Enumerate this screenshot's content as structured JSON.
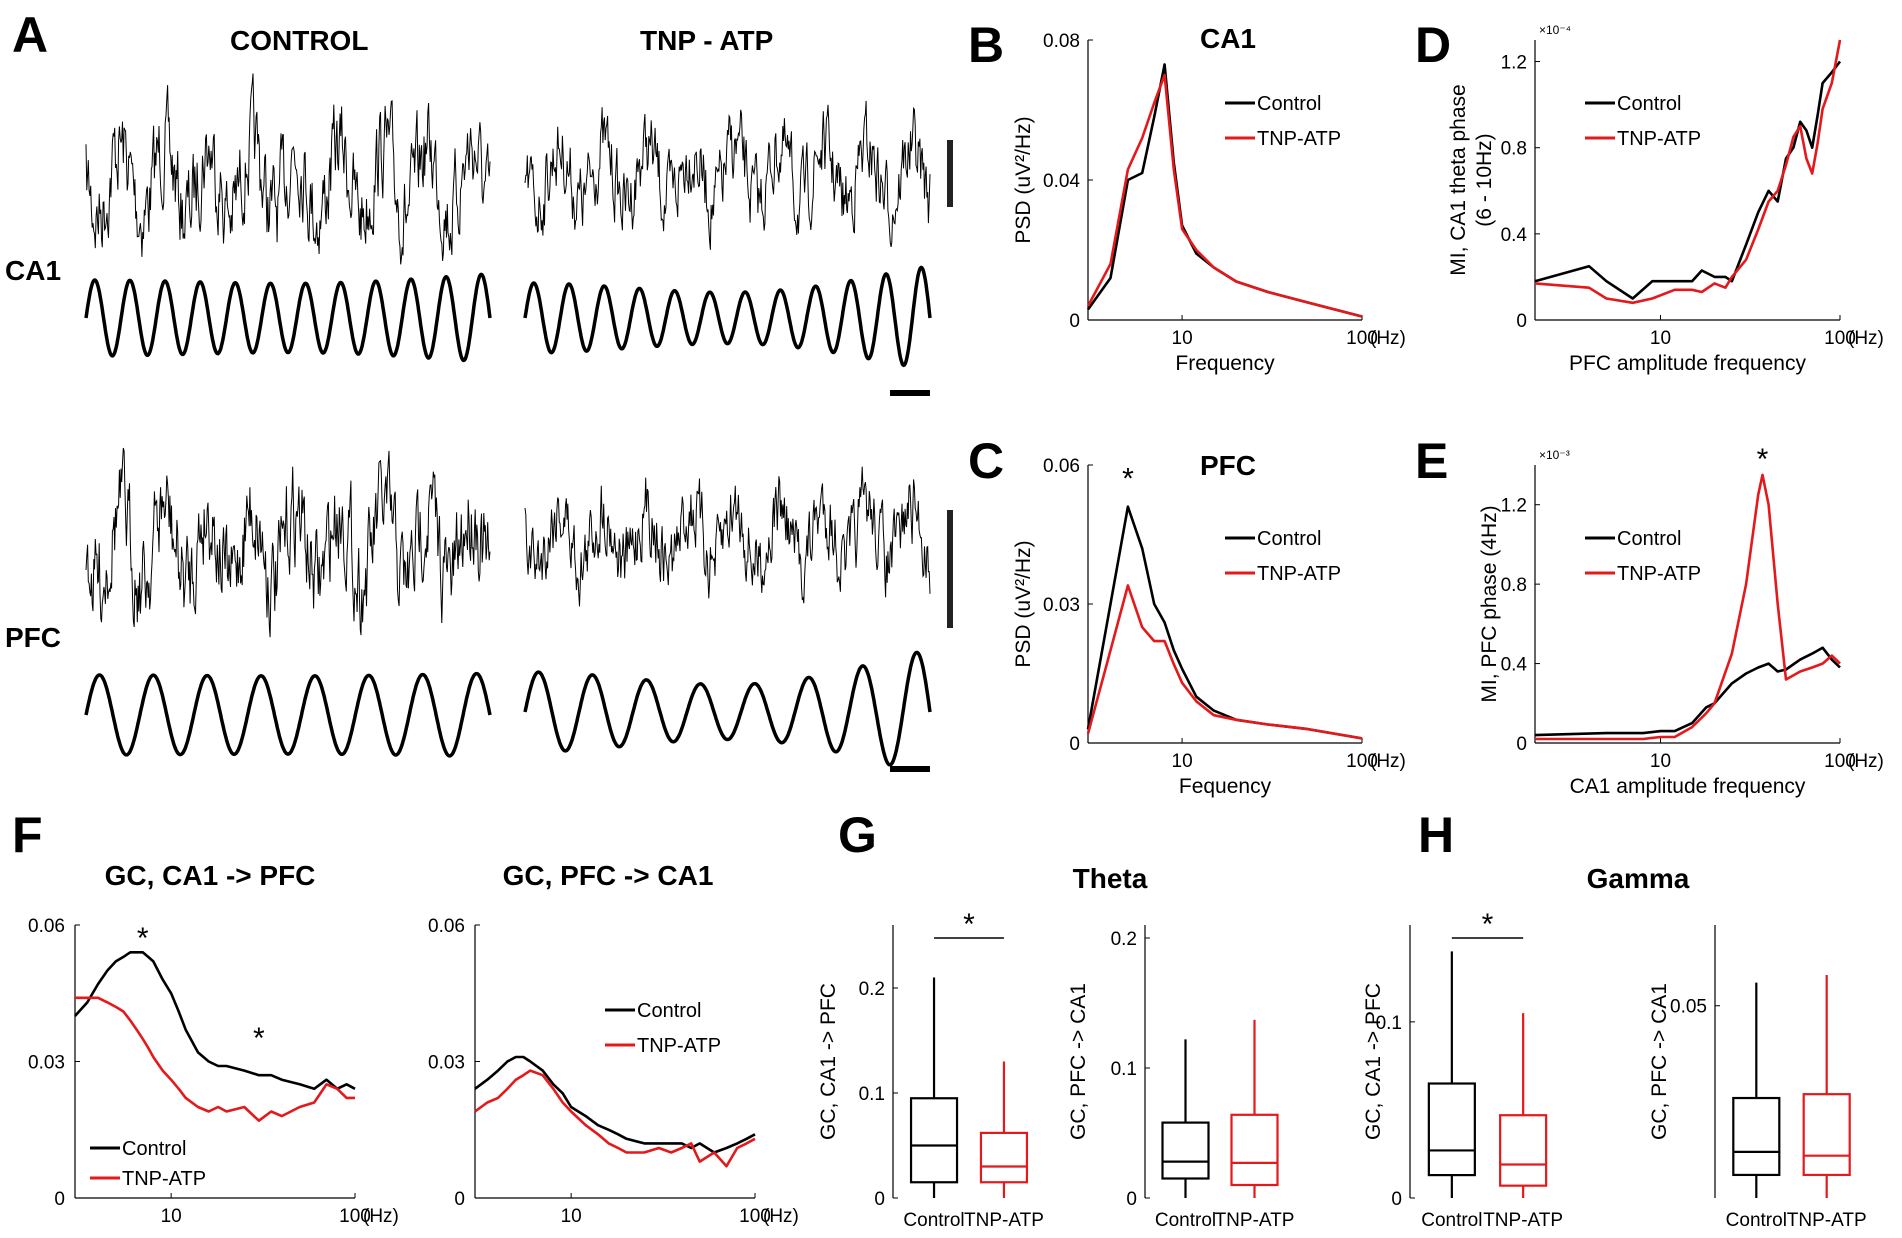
{
  "colors": {
    "control": "#000000",
    "tnp": "#e3191c"
  },
  "panels": {
    "A": "A",
    "B": "B",
    "C": "C",
    "D": "D",
    "E": "E",
    "F": "F",
    "G": "G",
    "H": "H"
  },
  "a": {
    "control": "CONTROL",
    "tnp": "TNP - ATP",
    "ca1": "CA1",
    "pfc": "PFC"
  },
  "chart_data": [
    {
      "id": "B",
      "type": "line",
      "title": "CA1",
      "xlabel": "Frequency",
      "ylabel": "PSD (uV²/Hz)",
      "xscale": "log",
      "xlim": [
        3,
        100
      ],
      "ylim": [
        0,
        0.08
      ],
      "yticks": [
        "0",
        "0.04",
        "0.08"
      ],
      "xticks": [
        "10",
        "100"
      ],
      "xunit": "(Hz)",
      "legend": [
        "Control",
        "TNP-ATP"
      ],
      "annotations": [],
      "series": [
        {
          "name": "Control",
          "color": "#000000",
          "x": [
            3,
            4,
            5,
            6,
            7,
            8,
            9,
            10,
            12,
            15,
            20,
            30,
            50,
            100
          ],
          "y": [
            0.003,
            0.012,
            0.04,
            0.042,
            0.058,
            0.073,
            0.045,
            0.027,
            0.019,
            0.015,
            0.011,
            0.008,
            0.005,
            0.001
          ]
        },
        {
          "name": "TNP-ATP",
          "color": "#e3191c",
          "x": [
            3,
            4,
            5,
            6,
            7,
            8,
            9,
            10,
            12,
            15,
            20,
            30,
            50,
            100
          ],
          "y": [
            0.004,
            0.016,
            0.043,
            0.052,
            0.062,
            0.07,
            0.043,
            0.026,
            0.02,
            0.015,
            0.011,
            0.008,
            0.005,
            0.001
          ]
        }
      ]
    },
    {
      "id": "C",
      "type": "line",
      "title": "PFC",
      "xlabel": "Fequency",
      "ylabel": "PSD (uV²/Hz)",
      "xscale": "log",
      "xlim": [
        3,
        100
      ],
      "ylim": [
        0,
        0.06
      ],
      "yticks": [
        "0",
        "0.03",
        "0.06"
      ],
      "xticks": [
        "10",
        "100"
      ],
      "xunit": "(Hz)",
      "legend": [
        "Control",
        "TNP-ATP"
      ],
      "annotations": [
        {
          "text": "*",
          "x": 5,
          "y": 0.058
        }
      ],
      "series": [
        {
          "name": "Control",
          "color": "#000000",
          "x": [
            3,
            4,
            5,
            6,
            7,
            8,
            9,
            10,
            12,
            15,
            20,
            30,
            50,
            100
          ],
          "y": [
            0.003,
            0.03,
            0.051,
            0.042,
            0.03,
            0.026,
            0.02,
            0.016,
            0.01,
            0.007,
            0.005,
            0.004,
            0.003,
            0.001
          ]
        },
        {
          "name": "TNP-ATP",
          "color": "#e3191c",
          "x": [
            3,
            4,
            5,
            6,
            7,
            8,
            9,
            10,
            12,
            15,
            20,
            30,
            50,
            100
          ],
          "y": [
            0.002,
            0.02,
            0.034,
            0.025,
            0.022,
            0.022,
            0.017,
            0.013,
            0.009,
            0.006,
            0.005,
            0.004,
            0.003,
            0.001
          ]
        }
      ]
    },
    {
      "id": "D",
      "type": "line",
      "title": "",
      "xlabel": "PFC amplitude frequency",
      "ylabel": "MI, CA1 theta phase|(6 - 10Hz)",
      "multiplier": "×10⁻⁴",
      "xscale": "log",
      "xlim": [
        2,
        100
      ],
      "ylim": [
        0,
        1.3
      ],
      "yticks": [
        "0",
        "0.4",
        "0.8",
        "1.2"
      ],
      "xticks": [
        "10",
        "100"
      ],
      "xunit": "(Hz)",
      "legend": [
        "Control",
        "TNP-ATP"
      ],
      "annotations": [],
      "series": [
        {
          "name": "Control",
          "color": "#000000",
          "x": [
            2,
            4,
            5,
            7,
            9,
            12,
            15,
            17,
            20,
            23,
            25,
            30,
            35,
            40,
            45,
            50,
            55,
            60,
            65,
            70,
            75,
            80,
            90,
            100
          ],
          "y": [
            0.18,
            0.25,
            0.18,
            0.1,
            0.18,
            0.18,
            0.18,
            0.23,
            0.2,
            0.2,
            0.18,
            0.35,
            0.5,
            0.6,
            0.55,
            0.75,
            0.8,
            0.92,
            0.88,
            0.8,
            0.95,
            1.1,
            1.15,
            1.2
          ]
        },
        {
          "name": "TNP-ATP",
          "color": "#e3191c",
          "x": [
            2,
            4,
            5,
            7,
            9,
            12,
            15,
            17,
            20,
            23,
            25,
            30,
            35,
            40,
            45,
            50,
            55,
            60,
            65,
            70,
            75,
            80,
            90,
            100
          ],
          "y": [
            0.17,
            0.15,
            0.1,
            0.08,
            0.1,
            0.14,
            0.14,
            0.13,
            0.17,
            0.15,
            0.2,
            0.28,
            0.42,
            0.55,
            0.6,
            0.72,
            0.85,
            0.9,
            0.75,
            0.68,
            0.82,
            0.98,
            1.1,
            1.3
          ]
        }
      ]
    },
    {
      "id": "E",
      "type": "line",
      "title": "",
      "xlabel": "CA1 amplitude frequency",
      "ylabel": "MI, PFC phase (4Hz)",
      "multiplier": "×10⁻³",
      "xscale": "log",
      "xlim": [
        2,
        100
      ],
      "ylim": [
        0,
        1.4
      ],
      "yticks": [
        "0",
        "0.4",
        "0.8",
        "1.2"
      ],
      "xticks": [
        "10",
        "100"
      ],
      "xunit": "(Hz)",
      "legend": [
        "Control",
        "TNP-ATP"
      ],
      "annotations": [
        {
          "text": "*",
          "x": 37,
          "y": 1.45
        }
      ],
      "series": [
        {
          "name": "Control",
          "color": "#000000",
          "x": [
            2,
            5,
            8,
            10,
            12,
            15,
            18,
            20,
            25,
            30,
            35,
            40,
            45,
            50,
            60,
            70,
            80,
            90,
            100
          ],
          "y": [
            0.04,
            0.05,
            0.05,
            0.06,
            0.06,
            0.1,
            0.18,
            0.2,
            0.3,
            0.35,
            0.38,
            0.4,
            0.36,
            0.37,
            0.42,
            0.45,
            0.48,
            0.42,
            0.38
          ]
        },
        {
          "name": "TNP-ATP",
          "color": "#e3191c",
          "x": [
            2,
            5,
            8,
            10,
            12,
            15,
            18,
            20,
            25,
            30,
            35,
            37,
            40,
            45,
            50,
            60,
            70,
            80,
            90,
            100
          ],
          "y": [
            0.02,
            0.02,
            0.02,
            0.03,
            0.03,
            0.08,
            0.15,
            0.2,
            0.45,
            0.8,
            1.25,
            1.35,
            1.2,
            0.7,
            0.32,
            0.36,
            0.38,
            0.4,
            0.44,
            0.4
          ]
        }
      ]
    },
    {
      "id": "F1",
      "type": "line",
      "title": "GC, CA1 -> PFC",
      "xlabel": "",
      "ylabel": "",
      "xscale": "log",
      "xlim": [
        3,
        100
      ],
      "ylim": [
        0,
        0.06
      ],
      "yticks": [
        "0",
        "0.03",
        "0.06"
      ],
      "xticks": [
        "10",
        "100"
      ],
      "xunit": "(Hz)",
      "legend": [
        "Control",
        "TNP-ATP"
      ],
      "annotations": [
        {
          "text": "*",
          "x": 7,
          "y": 0.058
        },
        {
          "text": "*",
          "x": 30,
          "y": 0.036
        }
      ],
      "series": [
        {
          "name": "Control",
          "color": "#000000",
          "x": [
            3,
            3.5,
            4,
            4.5,
            5,
            5.5,
            6,
            6.5,
            7,
            7.5,
            8,
            9,
            10,
            11,
            12,
            14,
            16,
            18,
            20,
            25,
            30,
            35,
            40,
            50,
            60,
            70,
            80,
            90,
            100
          ],
          "y": [
            0.04,
            0.043,
            0.047,
            0.05,
            0.052,
            0.053,
            0.054,
            0.054,
            0.054,
            0.053,
            0.052,
            0.048,
            0.045,
            0.041,
            0.037,
            0.032,
            0.03,
            0.029,
            0.029,
            0.028,
            0.027,
            0.027,
            0.026,
            0.025,
            0.024,
            0.026,
            0.024,
            0.025,
            0.024
          ]
        },
        {
          "name": "TNP-ATP",
          "color": "#e3191c",
          "x": [
            3,
            3.5,
            4,
            4.5,
            5,
            5.5,
            6,
            6.5,
            7,
            7.5,
            8,
            9,
            10,
            11,
            12,
            14,
            16,
            18,
            20,
            25,
            30,
            35,
            40,
            50,
            60,
            70,
            80,
            90,
            100
          ],
          "y": [
            0.044,
            0.044,
            0.044,
            0.043,
            0.042,
            0.041,
            0.039,
            0.037,
            0.035,
            0.033,
            0.031,
            0.028,
            0.026,
            0.024,
            0.022,
            0.02,
            0.019,
            0.02,
            0.019,
            0.02,
            0.017,
            0.019,
            0.018,
            0.02,
            0.021,
            0.025,
            0.024,
            0.022,
            0.022
          ]
        }
      ]
    },
    {
      "id": "F2",
      "type": "line",
      "title": "GC, PFC -> CA1",
      "xlabel": "",
      "ylabel": "",
      "xscale": "log",
      "xlim": [
        3,
        100
      ],
      "ylim": [
        0,
        0.06
      ],
      "yticks": [
        "0",
        "0.03",
        "0.06"
      ],
      "xticks": [
        "10",
        "100"
      ],
      "xunit": "(Hz)",
      "legend": [
        "Control",
        "TNP-ATP"
      ],
      "annotations": [],
      "series": [
        {
          "name": "Control",
          "color": "#000000",
          "x": [
            3,
            3.5,
            4,
            4.5,
            5,
            5.5,
            6,
            7,
            8,
            9,
            10,
            12,
            14,
            16,
            18,
            20,
            25,
            30,
            35,
            40,
            45,
            50,
            60,
            70,
            80,
            90,
            100
          ],
          "y": [
            0.024,
            0.026,
            0.028,
            0.03,
            0.031,
            0.031,
            0.03,
            0.028,
            0.025,
            0.023,
            0.02,
            0.018,
            0.016,
            0.015,
            0.014,
            0.013,
            0.012,
            0.012,
            0.012,
            0.012,
            0.011,
            0.012,
            0.01,
            0.011,
            0.012,
            0.013,
            0.014
          ]
        },
        {
          "name": "TNP-ATP",
          "color": "#e3191c",
          "x": [
            3,
            3.5,
            4,
            4.5,
            5,
            5.5,
            6,
            7,
            8,
            9,
            10,
            12,
            14,
            16,
            18,
            20,
            25,
            30,
            35,
            40,
            45,
            50,
            60,
            70,
            80,
            90,
            100
          ],
          "y": [
            0.019,
            0.021,
            0.022,
            0.024,
            0.026,
            0.027,
            0.028,
            0.027,
            0.024,
            0.021,
            0.019,
            0.016,
            0.014,
            0.012,
            0.011,
            0.01,
            0.01,
            0.011,
            0.01,
            0.011,
            0.012,
            0.008,
            0.01,
            0.007,
            0.011,
            0.012,
            0.013
          ]
        }
      ]
    },
    {
      "id": "G1",
      "type": "box",
      "title": "Theta",
      "ylabel": "GC, CA1 -> PFC",
      "ylim": [
        0,
        0.26
      ],
      "yticks": [
        "0",
        "0.1",
        "0.2"
      ],
      "categories": [
        "Control",
        "TNP-ATP"
      ],
      "significance": "*",
      "boxes": [
        {
          "name": "Control",
          "color": "#000000",
          "min": 0.0,
          "q1": 0.015,
          "median": 0.05,
          "q3": 0.095,
          "max": 0.21
        },
        {
          "name": "TNP-ATP",
          "color": "#e3191c",
          "min": 0.0,
          "q1": 0.015,
          "median": 0.03,
          "q3": 0.062,
          "max": 0.13
        }
      ]
    },
    {
      "id": "G2",
      "type": "box",
      "ylabel": "GC, PFC -> CA1",
      "ylim": [
        0,
        0.21
      ],
      "yticks": [
        "0",
        "0.1",
        "0.2"
      ],
      "categories": [
        "Control",
        "TNP-ATP"
      ],
      "boxes": [
        {
          "name": "Control",
          "color": "#000000",
          "min": 0.0,
          "q1": 0.015,
          "median": 0.028,
          "q3": 0.058,
          "max": 0.122
        },
        {
          "name": "TNP-ATP",
          "color": "#e3191c",
          "min": 0.0,
          "q1": 0.01,
          "median": 0.027,
          "q3": 0.064,
          "max": 0.137
        }
      ]
    },
    {
      "id": "H1",
      "type": "box",
      "title": "Gamma",
      "ylabel": "GC, CA1 -> PFC",
      "ylim": [
        0,
        0.155
      ],
      "yticks": [
        "0",
        "0.1"
      ],
      "categories": [
        "Control",
        "TNP-ATP"
      ],
      "significance": "*",
      "boxes": [
        {
          "name": "Control",
          "color": "#000000",
          "min": 0.0,
          "q1": 0.013,
          "median": 0.027,
          "q3": 0.065,
          "max": 0.14
        },
        {
          "name": "TNP-ATP",
          "color": "#e3191c",
          "min": 0.0,
          "q1": 0.007,
          "median": 0.019,
          "q3": 0.047,
          "max": 0.105
        }
      ]
    },
    {
      "id": "H2",
      "type": "box",
      "ylabel": "GC, PFC -> CA1",
      "ylim": [
        0,
        0.071
      ],
      "yticks": [
        "0.05"
      ],
      "categories": [
        "Control",
        "TNP-ATP"
      ],
      "boxes": [
        {
          "name": "Control",
          "color": "#000000",
          "min": 0.0,
          "q1": 0.006,
          "median": 0.012,
          "q3": 0.026,
          "max": 0.056
        },
        {
          "name": "TNP-ATP",
          "color": "#e3191c",
          "min": 0.0,
          "q1": 0.006,
          "median": 0.011,
          "q3": 0.027,
          "max": 0.058
        }
      ]
    }
  ]
}
